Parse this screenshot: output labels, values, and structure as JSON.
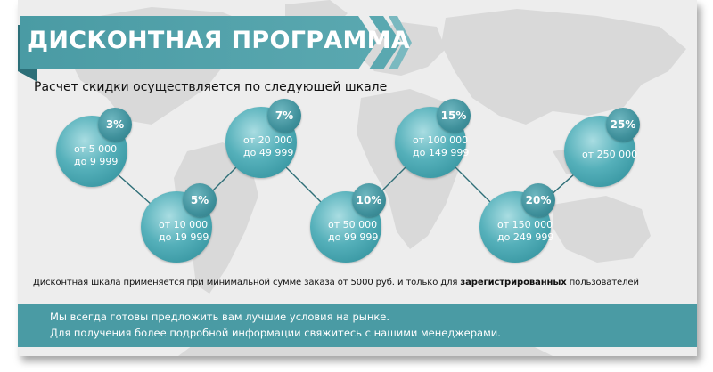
{
  "title": "ДИСКОНТНАЯ ПРОГРАММА",
  "subtitle": "Расчет скидки осуществляется по следующей шкале",
  "tiers": [
    {
      "percent": "3%",
      "line1": "от 5 000",
      "line2": "до 9 999"
    },
    {
      "percent": "5%",
      "line1": "от 10 000",
      "line2": "до 19 999"
    },
    {
      "percent": "7%",
      "line1": "от 20 000",
      "line2": "до 49 999"
    },
    {
      "percent": "10%",
      "line1": "от 50 000",
      "line2": "до 99 999"
    },
    {
      "percent": "15%",
      "line1": "от 100 000",
      "line2": "до 149 999"
    },
    {
      "percent": "20%",
      "line1": "от 150 000",
      "line2": "до 249 999"
    },
    {
      "percent": "25%",
      "line1": "от 250 000",
      "line2": ""
    }
  ],
  "note": {
    "before": "Дисконтная шкала применяется при минимальной сумме заказа от 5000 руб. и только для ",
    "bold": "зарегистрированных",
    "after": " пользователей"
  },
  "footer": {
    "line1": "Мы всегда готовы предложить вам лучшие условия на рынке.",
    "line2": "Для получения более подробной информации свяжитесь с нашими менеджерами."
  },
  "colors": {
    "accent": "#4a9ba4",
    "circle": "#55b0ba",
    "badge": "#3f909b"
  }
}
